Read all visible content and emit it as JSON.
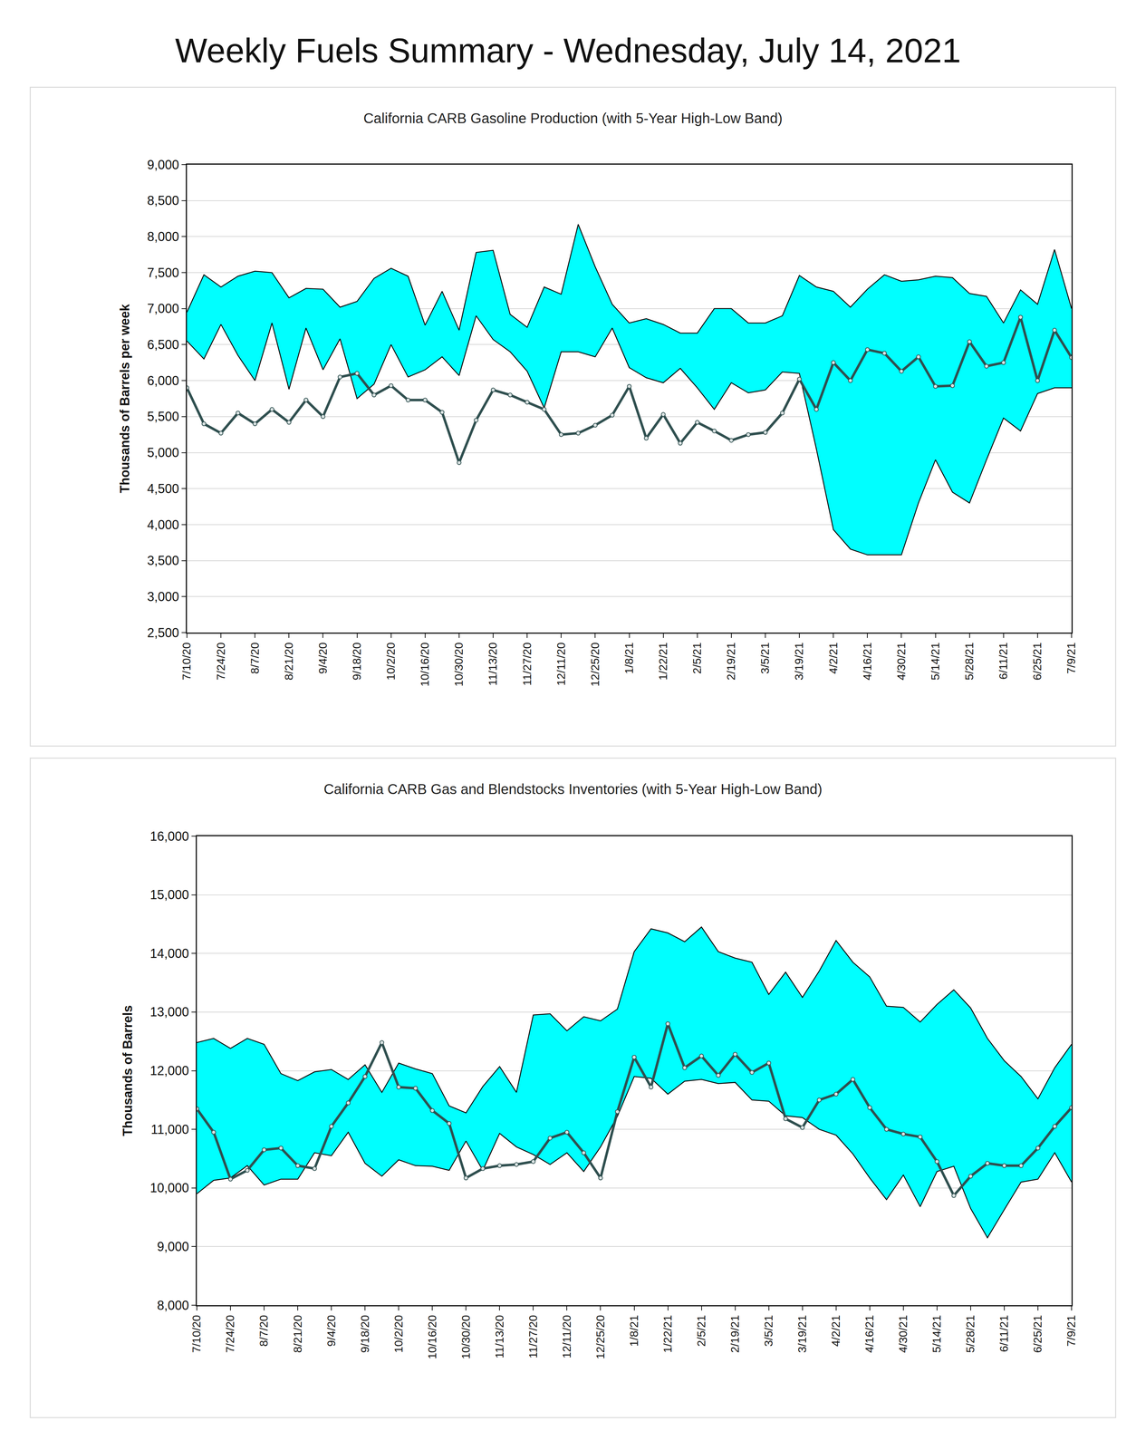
{
  "title": "Weekly Fuels Summary - Wednesday, July 14, 2021",
  "chart_data": [
    {
      "type": "line",
      "title": "California CARB Gasoline Production (with 5-Year High-Low Band)",
      "ylabel": "Thousands of Barrels per week",
      "categories": [
        "7/10/20",
        null,
        "7/24/20",
        null,
        "8/7/20",
        null,
        "8/21/20",
        null,
        "9/4/20",
        null,
        "9/18/20",
        null,
        "10/2/20",
        null,
        "10/16/20",
        null,
        "10/30/20",
        null,
        "11/13/20",
        null,
        "11/27/20",
        null,
        "12/11/20",
        null,
        "12/25/20",
        null,
        "1/8/21",
        null,
        "1/22/21",
        null,
        "2/5/21",
        null,
        "2/19/21",
        null,
        "3/5/21",
        null,
        "3/19/21",
        null,
        "4/2/21",
        null,
        "4/16/21",
        null,
        "4/30/21",
        null,
        "5/14/21",
        null,
        "5/28/21",
        null,
        "6/11/21",
        null,
        "6/25/21",
        null,
        "7/9/21"
      ],
      "series": [
        {
          "type": "area",
          "color": "#00ffff",
          "values": [
            6550,
            6300,
            6780,
            6350,
            6000,
            6800,
            5880,
            6730,
            6150,
            6580,
            5750,
            5950,
            6500,
            6050,
            6150,
            6330,
            6070,
            6900,
            6570,
            6400,
            6130,
            5620,
            6400,
            6400,
            6330,
            6730,
            6180,
            6040,
            5970,
            6170,
            5900,
            5600,
            5970,
            5830,
            5870,
            6120,
            6100,
            5050,
            3930,
            3660,
            3580,
            3580,
            3580,
            4300,
            4900,
            4450,
            4300,
            4900,
            5480,
            5300,
            5820,
            5900,
            5900
          ]
        },
        {
          "type": "area",
          "color": "#00ffff",
          "values": [
            6950,
            7470,
            7300,
            7450,
            7520,
            7500,
            7150,
            7280,
            7270,
            7020,
            7100,
            7420,
            7560,
            7450,
            6770,
            7240,
            6700,
            7780,
            7810,
            6920,
            6740,
            7300,
            7200,
            8170,
            7580,
            7060,
            6800,
            6860,
            6780,
            6660,
            6660,
            7000,
            7000,
            6800,
            6800,
            6900,
            7460,
            7300,
            7240,
            7020,
            7270,
            7470,
            7380,
            7400,
            7450,
            7430,
            7210,
            7170,
            6800,
            7260,
            7060,
            7820,
            7000
          ]
        },
        {
          "type": "line",
          "color": "#2f4f4f",
          "marker": "circle",
          "values": [
            5900,
            5400,
            5270,
            5550,
            5400,
            5600,
            5420,
            5730,
            5500,
            6050,
            6100,
            5800,
            5930,
            5730,
            5730,
            5560,
            4860,
            5450,
            5870,
            5800,
            5700,
            5600,
            5250,
            5270,
            5380,
            5520,
            5920,
            5200,
            5530,
            5130,
            5420,
            5300,
            5170,
            5250,
            5280,
            5550,
            6020,
            5600,
            6250,
            6000,
            6430,
            6380,
            6130,
            6330,
            5920,
            5930,
            6540,
            6200,
            6250,
            6880,
            6000,
            6700,
            6320
          ]
        }
      ],
      "ylim": [
        2500,
        9000
      ],
      "yticks": [
        {
          "value": 2500,
          "label": "2,500"
        },
        {
          "value": 3000,
          "label": "3,000"
        },
        {
          "value": 3500,
          "label": "3,500"
        },
        {
          "value": 4000,
          "label": "4,000"
        },
        {
          "value": 4500,
          "label": "4,500"
        },
        {
          "value": 5000,
          "label": "5,000"
        },
        {
          "value": 5500,
          "label": "5,500"
        },
        {
          "value": 6000,
          "label": "6,000"
        },
        {
          "value": 6500,
          "label": "6,500"
        },
        {
          "value": 7000,
          "label": "7,000"
        },
        {
          "value": 7500,
          "label": "7,500"
        },
        {
          "value": 8000,
          "label": "8,000"
        },
        {
          "value": 8500,
          "label": "8,500"
        },
        {
          "value": 9000,
          "label": "9,000"
        }
      ],
      "grid": true
    },
    {
      "type": "line",
      "title": "California CARB Gas and Blendstocks Inventories (with 5-Year High-Low Band)",
      "ylabel": "Thousands of Barrels",
      "categories": [
        "7/10/20",
        null,
        "7/24/20",
        null,
        "8/7/20",
        null,
        "8/21/20",
        null,
        "9/4/20",
        null,
        "9/18/20",
        null,
        "10/2/20",
        null,
        "10/16/20",
        null,
        "10/30/20",
        null,
        "11/13/20",
        null,
        "11/27/20",
        null,
        "12/11/20",
        null,
        "12/25/20",
        null,
        "1/8/21",
        null,
        "1/22/21",
        null,
        "2/5/21",
        null,
        "2/19/21",
        null,
        "3/5/21",
        null,
        "3/19/21",
        null,
        "4/2/21",
        null,
        "4/16/21",
        null,
        "4/30/21",
        null,
        "5/14/21",
        null,
        "5/28/21",
        null,
        "6/11/21",
        null,
        "6/25/21",
        null,
        "7/9/21"
      ],
      "series": [
        {
          "type": "area",
          "color": "#00ffff",
          "values": [
            9900,
            10130,
            10170,
            10380,
            10050,
            10150,
            10150,
            10600,
            10550,
            10950,
            10420,
            10200,
            10480,
            10380,
            10370,
            10300,
            10800,
            10300,
            10930,
            10700,
            10570,
            10400,
            10600,
            10280,
            10700,
            11220,
            11900,
            11870,
            11600,
            11820,
            11850,
            11780,
            11800,
            11500,
            11480,
            11230,
            11200,
            11000,
            10900,
            10580,
            10170,
            9800,
            10220,
            9680,
            10280,
            10370,
            9650,
            9150,
            9630,
            10100,
            10150,
            10600,
            10100
          ]
        },
        {
          "type": "area",
          "color": "#00ffff",
          "values": [
            12480,
            12550,
            12380,
            12550,
            12450,
            11950,
            11830,
            11980,
            12020,
            11850,
            12100,
            11630,
            12130,
            12030,
            11950,
            11400,
            11280,
            11730,
            12070,
            11630,
            12950,
            12970,
            12680,
            12920,
            12850,
            13050,
            14030,
            14420,
            14350,
            14200,
            14450,
            14030,
            13920,
            13850,
            13300,
            13680,
            13250,
            13700,
            14220,
            13850,
            13600,
            13100,
            13080,
            12830,
            13130,
            13380,
            13070,
            12550,
            12170,
            11900,
            11520,
            12050,
            12450
          ]
        },
        {
          "type": "line",
          "color": "#2f4f4f",
          "marker": "circle",
          "values": [
            11350,
            10950,
            10150,
            10300,
            10650,
            10680,
            10380,
            10330,
            11050,
            11450,
            11900,
            12480,
            11720,
            11700,
            11320,
            11100,
            10170,
            10330,
            10380,
            10400,
            10450,
            10850,
            10950,
            10600,
            10170,
            11300,
            12230,
            11720,
            12800,
            12050,
            12250,
            11920,
            12280,
            11970,
            12130,
            11180,
            11030,
            11500,
            11600,
            11850,
            11370,
            11000,
            10920,
            10870,
            10450,
            9870,
            10200,
            10420,
            10380,
            10380,
            10680,
            11050,
            11370
          ]
        }
      ],
      "ylim": [
        8000,
        16000
      ],
      "yticks": [
        {
          "value": 8000,
          "label": "8,000"
        },
        {
          "value": 9000,
          "label": "9,000"
        },
        {
          "value": 10000,
          "label": "10,000"
        },
        {
          "value": 11000,
          "label": "11,000"
        },
        {
          "value": 12000,
          "label": "12,000"
        },
        {
          "value": 13000,
          "label": "13,000"
        },
        {
          "value": 14000,
          "label": "14,000"
        },
        {
          "value": 15000,
          "label": "15,000"
        },
        {
          "value": 16000,
          "label": "16,000"
        }
      ],
      "grid": true
    }
  ]
}
